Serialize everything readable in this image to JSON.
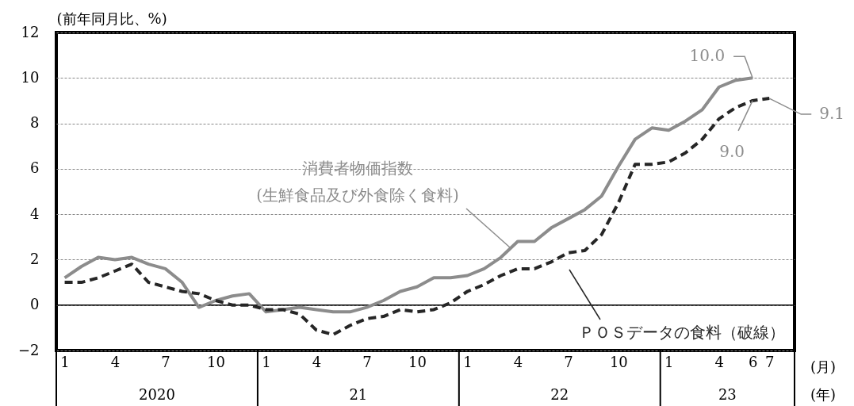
{
  "chart_data": {
    "type": "line",
    "ylabel": "(前年同月比、%)",
    "categories": [
      "1",
      null,
      null,
      "4",
      null,
      null,
      "7",
      null,
      null,
      "10",
      null,
      null,
      "1",
      null,
      null,
      "4",
      null,
      null,
      "7",
      null,
      null,
      "10",
      null,
      null,
      "1",
      null,
      null,
      "4",
      null,
      null,
      "7",
      null,
      null,
      "10",
      null,
      null,
      "1",
      null,
      null,
      "4",
      null,
      "6",
      "7",
      null
    ],
    "series": [
      {
        "name": "消費者物価指数\n(生鮮食品及び外食除く食料)",
        "color": "#8c8c8c",
        "line_style": "solid",
        "values": [
          1.2,
          1.7,
          2.1,
          2.0,
          2.1,
          1.8,
          1.6,
          1.0,
          -0.1,
          0.2,
          0.4,
          0.5,
          -0.3,
          -0.2,
          -0.1,
          -0.2,
          -0.3,
          -0.3,
          -0.1,
          0.2,
          0.6,
          0.8,
          1.2,
          1.2,
          1.3,
          1.6,
          2.1,
          2.8,
          2.8,
          3.4,
          3.8,
          4.2,
          4.8,
          6.1,
          7.3,
          7.8,
          7.7,
          8.1,
          8.6,
          9.6,
          9.9,
          10.0,
          null,
          null
        ],
        "value_labels": [
          null,
          null,
          null,
          null,
          null,
          null,
          null,
          null,
          null,
          null,
          null,
          null,
          null,
          null,
          null,
          null,
          null,
          null,
          null,
          null,
          null,
          null,
          null,
          null,
          null,
          null,
          null,
          null,
          null,
          null,
          null,
          null,
          null,
          null,
          null,
          null,
          null,
          null,
          null,
          null,
          null,
          "10.0",
          null,
          null
        ]
      },
      {
        "name": "ＰＯＳデータの食料（破線）",
        "color": "#262626",
        "line_style": "dashed",
        "values": [
          1.0,
          1.0,
          1.2,
          1.5,
          1.8,
          1.0,
          0.8,
          0.6,
          0.5,
          0.2,
          0.0,
          0.0,
          -0.2,
          -0.2,
          -0.4,
          -1.1,
          -1.3,
          -0.9,
          -0.6,
          -0.5,
          -0.2,
          -0.3,
          -0.2,
          0.1,
          0.6,
          0.9,
          1.3,
          1.6,
          1.6,
          1.9,
          2.3,
          2.4,
          3.1,
          4.5,
          6.2,
          6.2,
          6.3,
          6.7,
          7.3,
          8.2,
          8.7,
          9.0,
          9.1,
          null
        ],
        "value_labels": [
          null,
          null,
          null,
          null,
          null,
          null,
          null,
          null,
          null,
          null,
          null,
          null,
          null,
          null,
          null,
          null,
          null,
          null,
          null,
          null,
          null,
          null,
          null,
          null,
          null,
          null,
          null,
          null,
          null,
          null,
          null,
          null,
          null,
          null,
          null,
          null,
          null,
          null,
          null,
          null,
          null,
          "9.0",
          "9.1",
          null
        ]
      }
    ],
    "ylim": [
      -2,
      12
    ],
    "yticks": [
      -2,
      0,
      2,
      4,
      6,
      8,
      10,
      12
    ],
    "grid": "y",
    "ref_lines": [
      {
        "axis": "y",
        "value": 0,
        "color": "#000000"
      }
    ],
    "annotations": [
      "2020",
      "21",
      "22",
      "23",
      "(月)",
      "(年)"
    ]
  }
}
